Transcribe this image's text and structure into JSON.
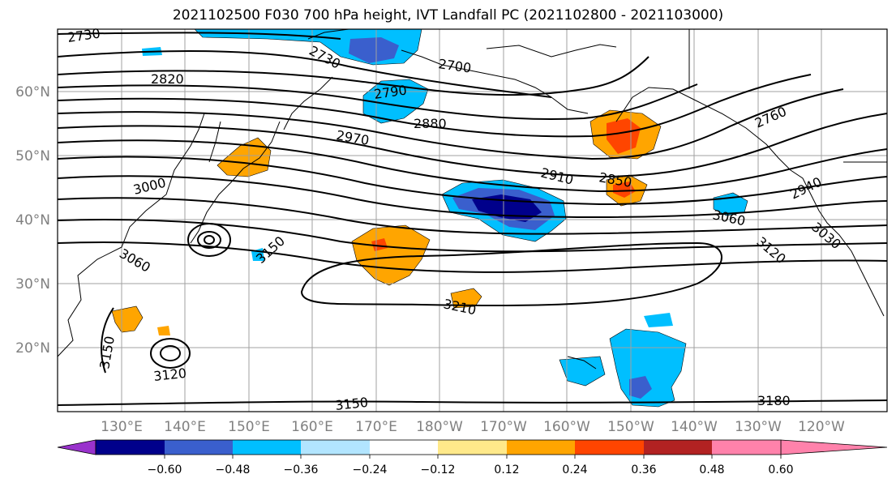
{
  "title": "2021102500 F030 700 hPa height, IVT Landfall PC (2021102800 - 2021103000)",
  "axes": {
    "lat_ticks": [
      "20°N",
      "30°N",
      "40°N",
      "50°N",
      "60°N"
    ],
    "lon_ticks": [
      "130°E",
      "140°E",
      "150°E",
      "160°E",
      "170°E",
      "180°W",
      "170°W",
      "160°W",
      "150°W",
      "140°W",
      "130°W",
      "120°W"
    ]
  },
  "contour_labels": [
    "2730",
    "2820",
    "2730",
    "2700",
    "2790",
    "2880",
    "2970",
    "3000",
    "2760",
    "2910",
    "2850",
    "2940",
    "3060",
    "3030",
    "3120",
    "3150",
    "3060",
    "3210",
    "3150",
    "3120",
    "3150",
    "3180"
  ],
  "colorbar": {
    "colors": [
      "#9932cc",
      "#00008b",
      "#3a5fcd",
      "#00bfff",
      "#b2e5ff",
      "#ffffff",
      "#ffe98a",
      "#ffa500",
      "#ff4500",
      "#b22222",
      "#ff82ab"
    ],
    "ticks": [
      "−0.60",
      "−0.48",
      "−0.36",
      "−0.24",
      "−0.12",
      "0.12",
      "0.24",
      "0.36",
      "0.48",
      "0.60"
    ]
  },
  "icons": {
    "map": "north-pacific-map",
    "coast": "coastline-outline"
  }
}
